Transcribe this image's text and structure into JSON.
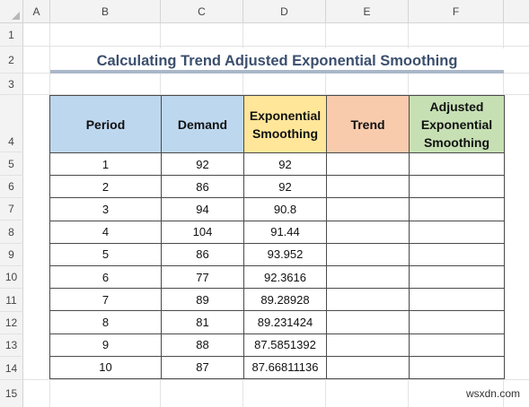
{
  "columns": [
    "A",
    "B",
    "C",
    "D",
    "E",
    "F"
  ],
  "rows": [
    "1",
    "2",
    "3",
    "4",
    "5",
    "6",
    "7",
    "8",
    "9",
    "10",
    "11",
    "12",
    "13",
    "14",
    "15"
  ],
  "title": "Calculating Trend Adjusted Exponential Smoothing",
  "table": {
    "headers": {
      "period": "Period",
      "demand": "Demand",
      "exp_line1": "Exponential",
      "exp_line2": "Smoothing",
      "trend": "Trend",
      "adj_line1": "Adjusted",
      "adj_line2": "Exponential",
      "adj_line3": "Smoothing"
    },
    "rows": [
      {
        "period": "1",
        "demand": "92",
        "smoothing": "92",
        "trend": "",
        "adjusted": ""
      },
      {
        "period": "2",
        "demand": "86",
        "smoothing": "92",
        "trend": "",
        "adjusted": ""
      },
      {
        "period": "3",
        "demand": "94",
        "smoothing": "90.8",
        "trend": "",
        "adjusted": ""
      },
      {
        "period": "4",
        "demand": "104",
        "smoothing": "91.44",
        "trend": "",
        "adjusted": ""
      },
      {
        "period": "5",
        "demand": "86",
        "smoothing": "93.952",
        "trend": "",
        "adjusted": ""
      },
      {
        "period": "6",
        "demand": "77",
        "smoothing": "92.3616",
        "trend": "",
        "adjusted": ""
      },
      {
        "period": "7",
        "demand": "89",
        "smoothing": "89.28928",
        "trend": "",
        "adjusted": ""
      },
      {
        "period": "8",
        "demand": "81",
        "smoothing": "89.231424",
        "trend": "",
        "adjusted": ""
      },
      {
        "period": "9",
        "demand": "88",
        "smoothing": "87.5851392",
        "trend": "",
        "adjusted": ""
      },
      {
        "period": "10",
        "demand": "87",
        "smoothing": "87.66811136",
        "trend": "",
        "adjusted": ""
      }
    ]
  },
  "watermark": "wsxdn.com",
  "colors": {
    "period_header": "#bdd7ee",
    "demand_header": "#bdd7ee",
    "smoothing_header": "#ffe699",
    "trend_header": "#f8cbad",
    "adjusted_header": "#c6e0b4",
    "title_text": "#3b4f6e"
  }
}
